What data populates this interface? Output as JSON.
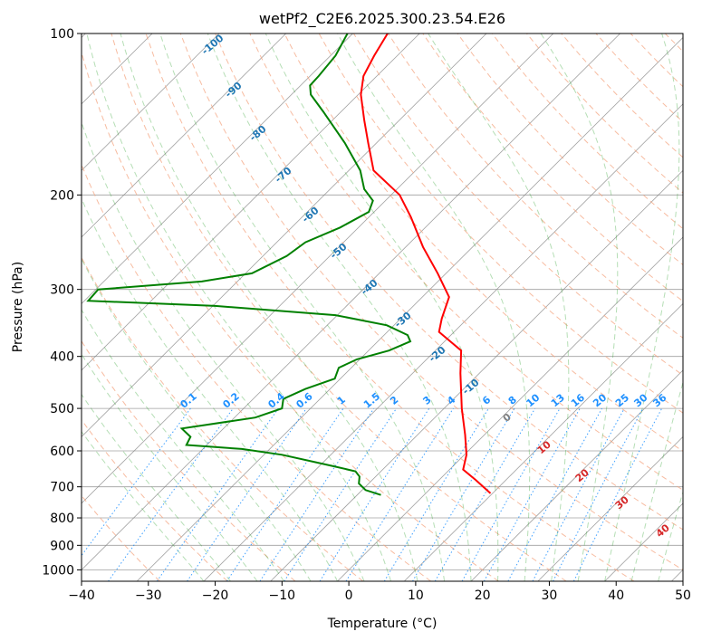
{
  "chart_data": {
    "type": "skew-t log-p sounding",
    "title": "wetPf2_C2E6.2025.300.23.54.E26",
    "xlabel": "Temperature (°C)",
    "ylabel": "Pressure (hPa)",
    "xlim": [
      -40,
      50
    ],
    "ylim": [
      1050,
      100
    ],
    "y_scale": "log",
    "grid": true,
    "x_ticks": [
      -40,
      -30,
      -20,
      -10,
      0,
      10,
      20,
      30,
      40,
      50
    ],
    "y_ticks": [
      100,
      200,
      300,
      400,
      500,
      600,
      700,
      800,
      900,
      1000
    ],
    "dry_adiabat_labels": [
      "-100",
      "-90",
      "-80",
      "-70",
      "-60",
      "-50",
      "-40",
      "-30",
      "-20",
      "-10"
    ],
    "mixing_ratio_labels": [
      "0.1",
      "0.2",
      "0.4",
      "0.6",
      "1",
      "1.5",
      "2",
      "3",
      "4",
      "6",
      "8",
      "10",
      "13",
      "16",
      "20",
      "25",
      "30",
      "36"
    ],
    "moist_adiabat_labels": [
      "0",
      "10",
      "20",
      "30",
      "40"
    ],
    "colors": {
      "temperature": "#ff0000",
      "dewpoint": "#008000",
      "dry_adiabat": "#f4a582",
      "moist_adiabat": "#2ca02c",
      "mixing_ratio": "#1e90ff",
      "isotherm": "#808080"
    },
    "series": [
      {
        "points": [
          {
            "p": 100,
            "x": 5.8
          },
          {
            "p": 110,
            "x": 3.8
          },
          {
            "p": 120,
            "x": 2.2
          },
          {
            "p": 130,
            "x": 1.8
          },
          {
            "p": 145,
            "x": 2.3
          },
          {
            "p": 160,
            "x": 2.9
          },
          {
            "p": 180,
            "x": 3.7
          },
          {
            "p": 200,
            "x": 7.6
          },
          {
            "p": 220,
            "x": 9.3
          },
          {
            "p": 250,
            "x": 11.1
          },
          {
            "p": 280,
            "x": 13.3
          },
          {
            "p": 310,
            "x": 15.0
          },
          {
            "p": 340,
            "x": 13.9
          },
          {
            "p": 360,
            "x": 13.5
          },
          {
            "p": 390,
            "x": 16.8
          },
          {
            "p": 430,
            "x": 16.7
          },
          {
            "p": 500,
            "x": 16.9
          },
          {
            "p": 560,
            "x": 17.4
          },
          {
            "p": 610,
            "x": 17.6
          },
          {
            "p": 650,
            "x": 17.1
          },
          {
            "p": 680,
            "x": 19.0
          },
          {
            "p": 720,
            "x": 21.2
          }
        ]
      },
      {
        "points": [
          {
            "p": 100,
            "x": -0.2
          },
          {
            "p": 110,
            "x": -2.0
          },
          {
            "p": 120,
            "x": -4.5
          },
          {
            "p": 125,
            "x": -5.8
          },
          {
            "p": 130,
            "x": -5.7
          },
          {
            "p": 140,
            "x": -3.8
          },
          {
            "p": 160,
            "x": -0.6
          },
          {
            "p": 180,
            "x": 1.7
          },
          {
            "p": 195,
            "x": 2.3
          },
          {
            "p": 205,
            "x": 3.6
          },
          {
            "p": 215,
            "x": 3.0
          },
          {
            "p": 230,
            "x": -1.3
          },
          {
            "p": 245,
            "x": -6.5
          },
          {
            "p": 260,
            "x": -9.3
          },
          {
            "p": 280,
            "x": -14.5
          },
          {
            "p": 290,
            "x": -22.0
          },
          {
            "p": 300,
            "x": -37.5
          },
          {
            "p": 315,
            "x": -39.0
          },
          {
            "p": 322,
            "x": -20.0
          },
          {
            "p": 335,
            "x": -2.0
          },
          {
            "p": 350,
            "x": 5.7
          },
          {
            "p": 365,
            "x": 8.8
          },
          {
            "p": 375,
            "x": 9.2
          },
          {
            "p": 390,
            "x": 6.0
          },
          {
            "p": 405,
            "x": 1.2
          },
          {
            "p": 420,
            "x": -1.5
          },
          {
            "p": 440,
            "x": -2.1
          },
          {
            "p": 460,
            "x": -6.5
          },
          {
            "p": 480,
            "x": -9.8
          },
          {
            "p": 500,
            "x": -10.0
          },
          {
            "p": 520,
            "x": -14.0
          },
          {
            "p": 545,
            "x": -25.0
          },
          {
            "p": 565,
            "x": -23.7
          },
          {
            "p": 585,
            "x": -24.3
          },
          {
            "p": 595,
            "x": -16.0
          },
          {
            "p": 610,
            "x": -10.0
          },
          {
            "p": 640,
            "x": -2.5
          },
          {
            "p": 655,
            "x": 1.0
          },
          {
            "p": 670,
            "x": 1.6
          },
          {
            "p": 690,
            "x": 1.5
          },
          {
            "p": 710,
            "x": 2.5
          },
          {
            "p": 725,
            "x": 4.8
          }
        ]
      }
    ]
  }
}
